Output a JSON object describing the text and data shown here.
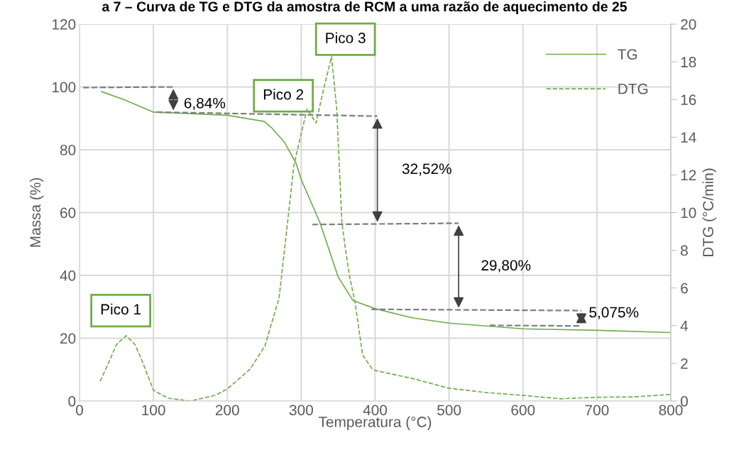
{
  "chart_data": {
    "type": "line",
    "title": "a 7 – Curva de TG e DTG da amostra de RCM a uma razão de aquecimento de 25",
    "xlabel": "Temperatura (°C)",
    "ylabel": "Massa (%)",
    "y2label": "DTG (°C/min)",
    "xlim": [
      0,
      800
    ],
    "xticks": [
      0,
      100,
      200,
      300,
      400,
      500,
      600,
      700,
      800
    ],
    "ylim": [
      0,
      120
    ],
    "yticks": [
      0,
      20,
      40,
      60,
      80,
      100,
      120
    ],
    "y2lim": [
      0,
      20
    ],
    "y2ticks": [
      0,
      2,
      4,
      6,
      8,
      10,
      12,
      14,
      16,
      18,
      20
    ],
    "grid": true,
    "legend": "top right",
    "series": [
      {
        "name": "TG",
        "color": "#70ad47",
        "line_style": "solid",
        "x": [
          30,
          60,
          100,
          150,
          200,
          250,
          260,
          277,
          293,
          300,
          325,
          350,
          370,
          400,
          450,
          500,
          600,
          700,
          800
        ],
        "values": [
          98.5,
          96,
          92,
          91.5,
          91,
          89,
          87,
          82.5,
          75.7,
          70.5,
          57,
          39.5,
          32,
          29.4,
          26.5,
          24.8,
          23,
          22.5,
          21.8
        ]
      },
      {
        "name": "DTG",
        "axis": "y2",
        "color": "#70ad47",
        "line_style": "dashed",
        "x": [
          28,
          39,
          50,
          63,
          75,
          84,
          100,
          120,
          150,
          183,
          200,
          231,
          251,
          270,
          283,
          290,
          300,
          308,
          320,
          330,
          341,
          348,
          355,
          360,
          366,
          373,
          383,
          396,
          400,
          450,
          500,
          550,
          600,
          650,
          700,
          750,
          800
        ],
        "values": [
          1.05,
          2.0,
          3.0,
          3.47,
          3.0,
          2.2,
          0.57,
          0.15,
          0.0,
          0.3,
          0.64,
          1.7,
          2.94,
          5.46,
          10,
          12.5,
          14.2,
          15.5,
          14.75,
          16.5,
          18.27,
          15.5,
          9.5,
          8,
          6.5,
          5.2,
          2.45,
          1.7,
          1.62,
          1.2,
          0.68,
          0.45,
          0.3,
          0.12,
          0.2,
          0.22,
          0.35
        ]
      },
      {
        "type": "line",
        "color": "#7f7f7f",
        "line_style": "dashed",
        "x": [
          5,
          127
        ],
        "values": [
          99.8,
          100
        ]
      },
      {
        "type": "line",
        "color": "#7f7f7f",
        "line_style": "dashed",
        "x": [
          105,
          403
        ],
        "values": [
          92,
          90.7
        ]
      },
      {
        "type": "line",
        "color": "#7f7f7f",
        "line_style": "dashed",
        "x": [
          315,
          513
        ],
        "values": [
          56.2,
          56.6
        ]
      },
      {
        "type": "line",
        "color": "#7f7f7f",
        "line_style": "dashed",
        "x": [
          395,
          679
        ],
        "values": [
          29.2,
          28.8
        ]
      },
      {
        "type": "line",
        "color": "#7f7f7f",
        "line_style": "dashed",
        "x": [
          555,
          679
        ],
        "values": [
          24.1,
          23.9
        ]
      }
    ],
    "annotations": [
      "6,84%",
      "32,52%",
      "29,80%",
      "5,075%",
      "Pico 1",
      "Pico 2",
      "Pico 3"
    ]
  }
}
